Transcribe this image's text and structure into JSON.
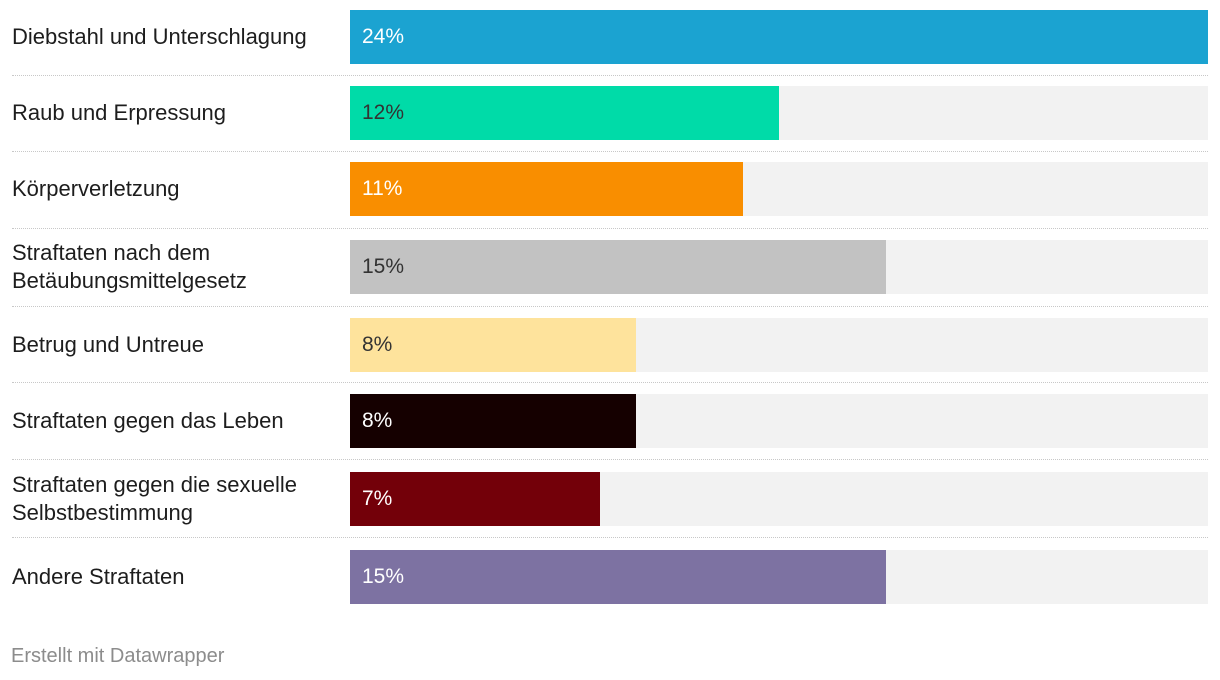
{
  "chart_data": {
    "type": "bar",
    "orientation": "horizontal",
    "unit": "%",
    "xlim": [
      0,
      24
    ],
    "categories": [
      "Diebstahl und Unterschlagung",
      "Raub und Erpressung",
      "Körperverletzung",
      "Straftaten nach dem\nBetäubungsmittelgesetz",
      "Betrug und Untreue",
      "Straftaten gegen das Leben",
      "Straftaten gegen die sexuelle\nSelbstbestimmung",
      "Andere Straftaten"
    ],
    "values": [
      24,
      12,
      11,
      15,
      8,
      8,
      7,
      15
    ],
    "value_labels": [
      "24%",
      "12%",
      "11%",
      "15%",
      "8%",
      "8%",
      "7%",
      "15%"
    ],
    "colors": [
      "#1ba3d1",
      "#00dba8",
      "#f98e00",
      "#c2c2c2",
      "#fee39c",
      "#150000",
      "#730009",
      "#7d72a2"
    ],
    "label_colors": [
      "#ffffff",
      "#333333",
      "#ffffff",
      "#333333",
      "#333333",
      "#ffffff",
      "#ffffff",
      "#ffffff"
    ],
    "track_color": "#f2f2f2"
  },
  "footer": {
    "credit": "Erstellt mit Datawrapper"
  }
}
